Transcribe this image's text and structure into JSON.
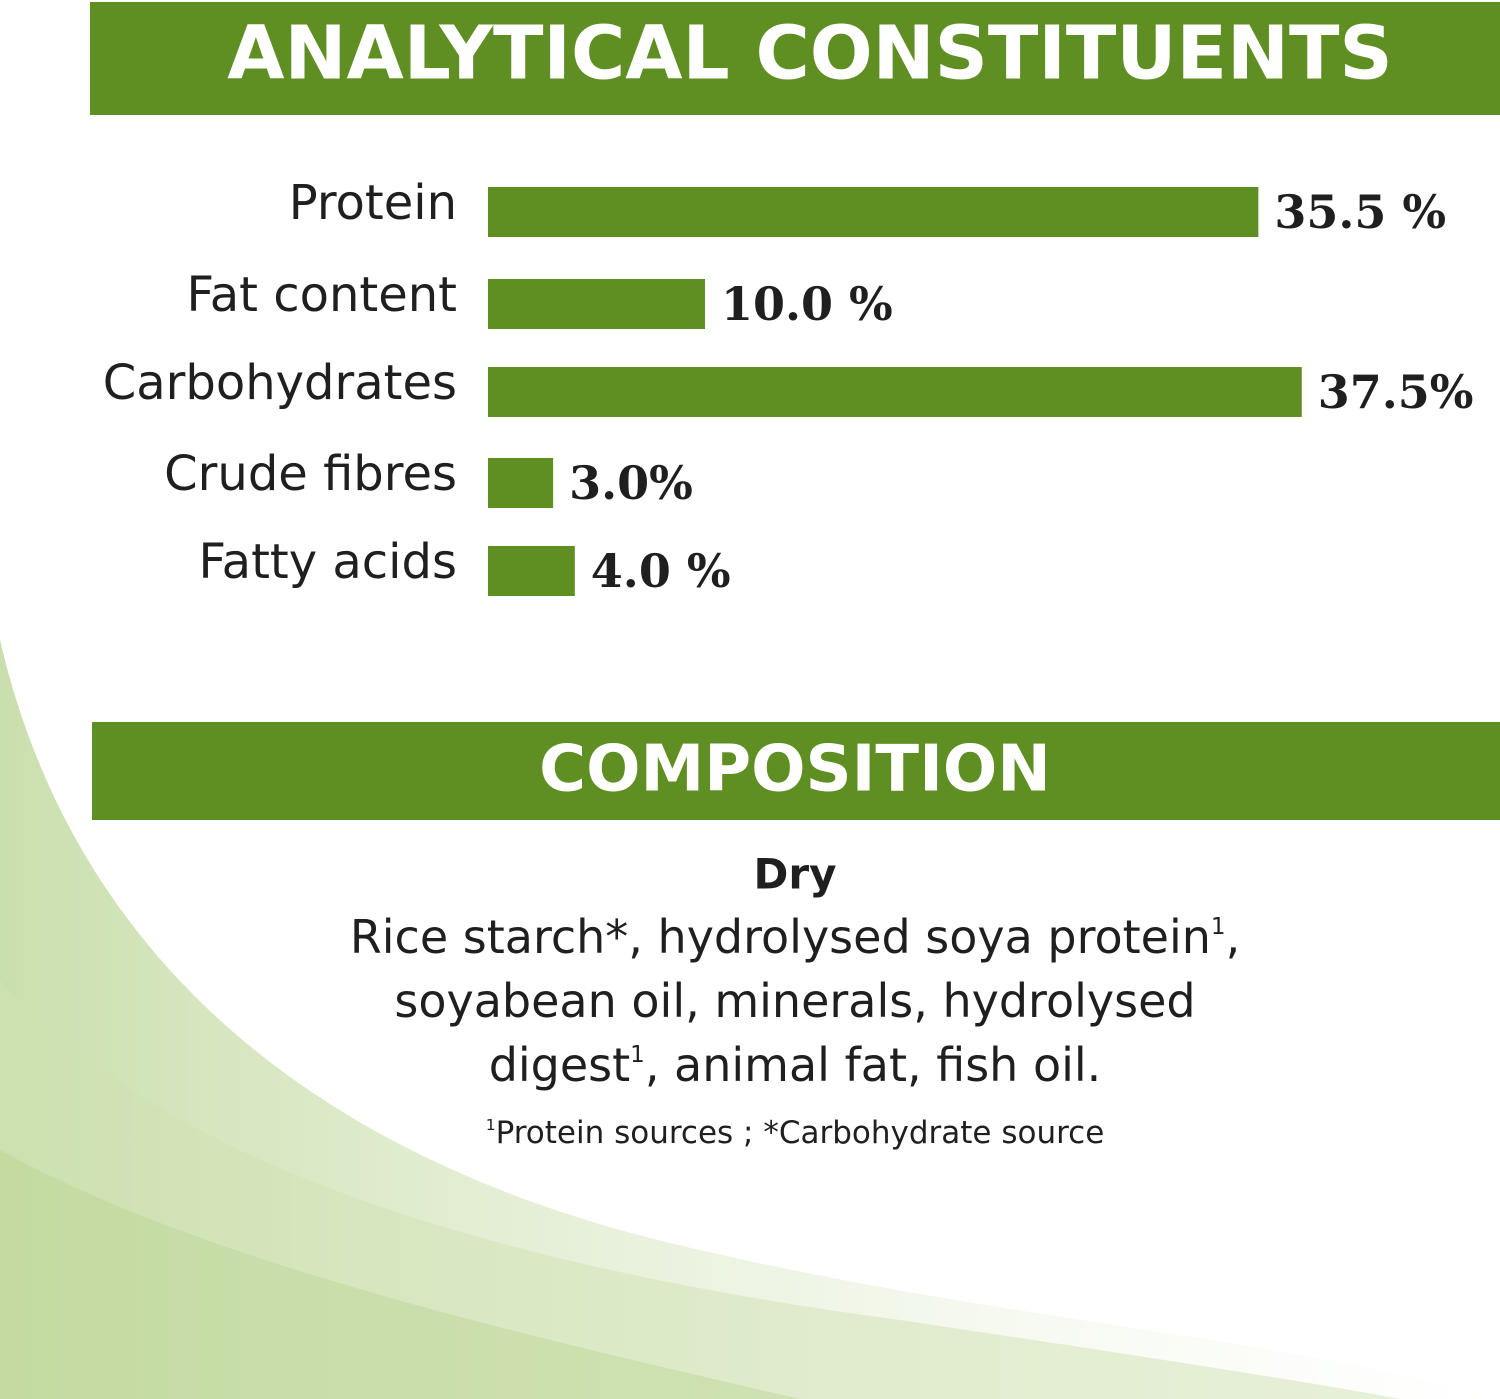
{
  "chart_data": {
    "type": "bar",
    "orientation": "horizontal",
    "title": "ANALYTICAL CONSTITUENTS",
    "categories": [
      "Protein",
      "Fat content",
      "Carbohydrates",
      "Crude fibres",
      "Fatty acids"
    ],
    "values": [
      35.5,
      10.0,
      37.5,
      3.0,
      4.0
    ],
    "value_labels": [
      "35.5 %",
      "10.0 %",
      "37.5%",
      "3.0%",
      "4.0 %"
    ],
    "color": "#5f8f23"
  },
  "composition": {
    "title": "COMPOSITION",
    "label": "Dry",
    "lines": [
      [
        {
          "text": "Rice starch*, hydrolysed soya protein"
        },
        {
          "sup": "1"
        },
        {
          "text": ","
        }
      ],
      [
        {
          "text": "soyabean oil, minerals, hydrolysed"
        }
      ],
      [
        {
          "text": "digest"
        },
        {
          "sup": "1"
        },
        {
          "text": ", animal fat, fish oil."
        }
      ]
    ],
    "footnote": [
      {
        "sup": "1"
      },
      {
        "text": "Protein sources ; *Carbohydrate source"
      }
    ]
  }
}
